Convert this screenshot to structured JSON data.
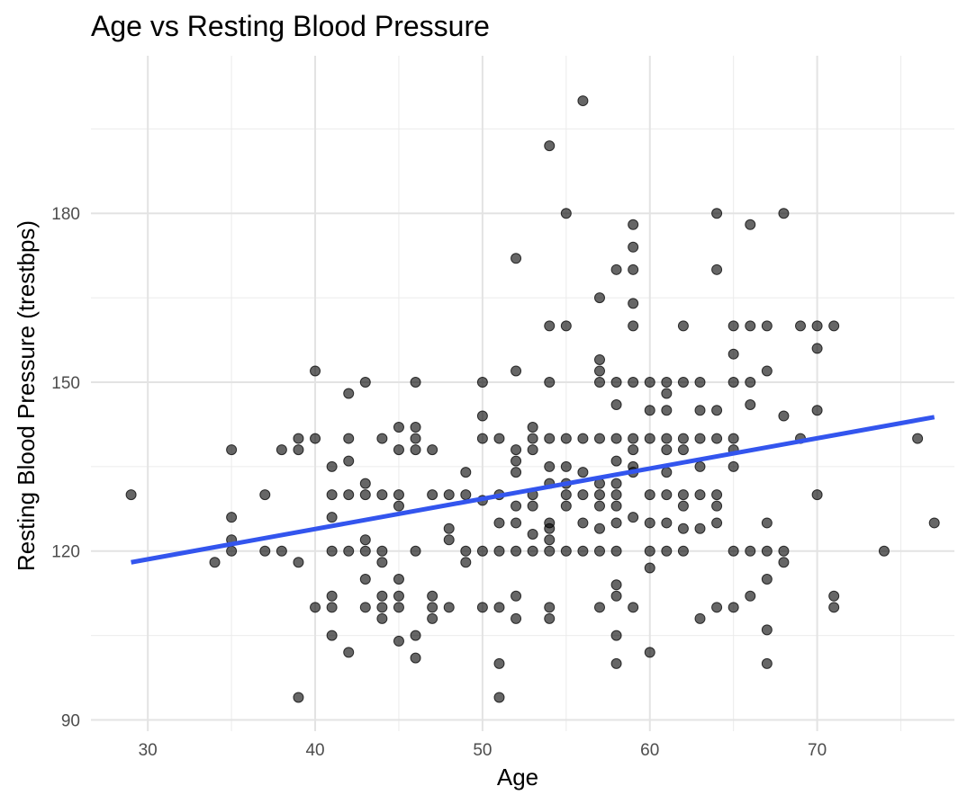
{
  "chart_data": {
    "type": "scatter",
    "title": "Age vs Resting Blood Pressure",
    "xlabel": "Age",
    "ylabel": "Resting Blood Pressure (trestbps)",
    "xlim": [
      26.6,
      78.2
    ],
    "ylim": [
      88,
      208
    ],
    "xticks": [
      30,
      40,
      50,
      60,
      70
    ],
    "yticks": [
      90,
      120,
      150,
      180
    ],
    "x_tick_labels": [
      "30",
      "40",
      "50",
      "60",
      "70"
    ],
    "y_tick_labels": [
      "90",
      "120",
      "150",
      "180"
    ],
    "grid": true,
    "legend": "none",
    "point_color": "#000000",
    "point_opacity": 0.6,
    "trend_line": {
      "type": "linear",
      "color": "#3355ee",
      "x": [
        29,
        77
      ],
      "y": [
        118,
        143.8
      ]
    },
    "points": [
      [
        29,
        130
      ],
      [
        34,
        118
      ],
      [
        35,
        138
      ],
      [
        35,
        126
      ],
      [
        35,
        122
      ],
      [
        35,
        120
      ],
      [
        37,
        130
      ],
      [
        37,
        120
      ],
      [
        38,
        138
      ],
      [
        38,
        120
      ],
      [
        39,
        140
      ],
      [
        39,
        138
      ],
      [
        39,
        118
      ],
      [
        39,
        94
      ],
      [
        40,
        152
      ],
      [
        40,
        140
      ],
      [
        40,
        110
      ],
      [
        41,
        135
      ],
      [
        41,
        130
      ],
      [
        41,
        126
      ],
      [
        41,
        120
      ],
      [
        41,
        112
      ],
      [
        41,
        110
      ],
      [
        41,
        105
      ],
      [
        42,
        148
      ],
      [
        42,
        140
      ],
      [
        42,
        136
      ],
      [
        42,
        130
      ],
      [
        42,
        120
      ],
      [
        42,
        102
      ],
      [
        43,
        150
      ],
      [
        43,
        132
      ],
      [
        43,
        130
      ],
      [
        43,
        122
      ],
      [
        43,
        120
      ],
      [
        43,
        115
      ],
      [
        43,
        110
      ],
      [
        44,
        140
      ],
      [
        44,
        130
      ],
      [
        44,
        120
      ],
      [
        44,
        118
      ],
      [
        44,
        112
      ],
      [
        44,
        110
      ],
      [
        44,
        108
      ],
      [
        45,
        142
      ],
      [
        45,
        138
      ],
      [
        45,
        130
      ],
      [
        45,
        128
      ],
      [
        45,
        115
      ],
      [
        45,
        112
      ],
      [
        45,
        110
      ],
      [
        45,
        104
      ],
      [
        46,
        150
      ],
      [
        46,
        142
      ],
      [
        46,
        140
      ],
      [
        46,
        138
      ],
      [
        46,
        120
      ],
      [
        46,
        105
      ],
      [
        46,
        101
      ],
      [
        47,
        138
      ],
      [
        47,
        130
      ],
      [
        47,
        112
      ],
      [
        47,
        110
      ],
      [
        47,
        108
      ],
      [
        48,
        130
      ],
      [
        48,
        124
      ],
      [
        48,
        122
      ],
      [
        48,
        110
      ],
      [
        49,
        134
      ],
      [
        49,
        130
      ],
      [
        49,
        120
      ],
      [
        49,
        118
      ],
      [
        50,
        150
      ],
      [
        50,
        144
      ],
      [
        50,
        140
      ],
      [
        50,
        129
      ],
      [
        50,
        120
      ],
      [
        50,
        110
      ],
      [
        51,
        140
      ],
      [
        51,
        130
      ],
      [
        51,
        125
      ],
      [
        51,
        120
      ],
      [
        51,
        110
      ],
      [
        51,
        100
      ],
      [
        51,
        94
      ],
      [
        52,
        172
      ],
      [
        52,
        152
      ],
      [
        52,
        138
      ],
      [
        52,
        136
      ],
      [
        52,
        134
      ],
      [
        52,
        128
      ],
      [
        52,
        125
      ],
      [
        52,
        120
      ],
      [
        52,
        112
      ],
      [
        52,
        108
      ],
      [
        53,
        142
      ],
      [
        53,
        140
      ],
      [
        53,
        138
      ],
      [
        53,
        130
      ],
      [
        53,
        128
      ],
      [
        53,
        123
      ],
      [
        53,
        120
      ],
      [
        54,
        192
      ],
      [
        54,
        160
      ],
      [
        54,
        150
      ],
      [
        54,
        140
      ],
      [
        54,
        135
      ],
      [
        54,
        132
      ],
      [
        54,
        125
      ],
      [
        54,
        124
      ],
      [
        54,
        122
      ],
      [
        54,
        120
      ],
      [
        54,
        110
      ],
      [
        54,
        108
      ],
      [
        55,
        180
      ],
      [
        55,
        160
      ],
      [
        55,
        140
      ],
      [
        55,
        135
      ],
      [
        55,
        132
      ],
      [
        55,
        130
      ],
      [
        55,
        128
      ],
      [
        55,
        120
      ],
      [
        56,
        200
      ],
      [
        56,
        140
      ],
      [
        56,
        134
      ],
      [
        56,
        130
      ],
      [
        56,
        125
      ],
      [
        56,
        120
      ],
      [
        57,
        165
      ],
      [
        57,
        154
      ],
      [
        57,
        152
      ],
      [
        57,
        150
      ],
      [
        57,
        140
      ],
      [
        57,
        132
      ],
      [
        57,
        130
      ],
      [
        57,
        128
      ],
      [
        57,
        124
      ],
      [
        57,
        120
      ],
      [
        57,
        110
      ],
      [
        58,
        170
      ],
      [
        58,
        150
      ],
      [
        58,
        146
      ],
      [
        58,
        140
      ],
      [
        58,
        136
      ],
      [
        58,
        132
      ],
      [
        58,
        130
      ],
      [
        58,
        128
      ],
      [
        58,
        125
      ],
      [
        58,
        120
      ],
      [
        58,
        114
      ],
      [
        58,
        112
      ],
      [
        58,
        105
      ],
      [
        58,
        100
      ],
      [
        59,
        178
      ],
      [
        59,
        174
      ],
      [
        59,
        170
      ],
      [
        59,
        164
      ],
      [
        59,
        160
      ],
      [
        59,
        150
      ],
      [
        59,
        140
      ],
      [
        59,
        138
      ],
      [
        59,
        135
      ],
      [
        59,
        134
      ],
      [
        59,
        126
      ],
      [
        59,
        110
      ],
      [
        60,
        150
      ],
      [
        60,
        145
      ],
      [
        60,
        140
      ],
      [
        60,
        130
      ],
      [
        60,
        125
      ],
      [
        60,
        120
      ],
      [
        60,
        117
      ],
      [
        60,
        102
      ],
      [
        61,
        150
      ],
      [
        61,
        148
      ],
      [
        61,
        145
      ],
      [
        61,
        140
      ],
      [
        61,
        138
      ],
      [
        61,
        134
      ],
      [
        61,
        130
      ],
      [
        61,
        125
      ],
      [
        61,
        120
      ],
      [
        62,
        160
      ],
      [
        62,
        150
      ],
      [
        62,
        140
      ],
      [
        62,
        138
      ],
      [
        62,
        130
      ],
      [
        62,
        128
      ],
      [
        62,
        124
      ],
      [
        62,
        120
      ],
      [
        63,
        150
      ],
      [
        63,
        145
      ],
      [
        63,
        140
      ],
      [
        63,
        135
      ],
      [
        63,
        130
      ],
      [
        63,
        124
      ],
      [
        63,
        108
      ],
      [
        64,
        180
      ],
      [
        64,
        170
      ],
      [
        64,
        145
      ],
      [
        64,
        140
      ],
      [
        64,
        130
      ],
      [
        64,
        128
      ],
      [
        64,
        125
      ],
      [
        64,
        110
      ],
      [
        65,
        160
      ],
      [
        65,
        155
      ],
      [
        65,
        150
      ],
      [
        65,
        140
      ],
      [
        65,
        138
      ],
      [
        65,
        135
      ],
      [
        65,
        120
      ],
      [
        65,
        110
      ],
      [
        66,
        178
      ],
      [
        66,
        160
      ],
      [
        66,
        150
      ],
      [
        66,
        146
      ],
      [
        66,
        120
      ],
      [
        66,
        112
      ],
      [
        67,
        160
      ],
      [
        67,
        152
      ],
      [
        67,
        125
      ],
      [
        67,
        120
      ],
      [
        67,
        115
      ],
      [
        67,
        106
      ],
      [
        67,
        100
      ],
      [
        68,
        180
      ],
      [
        68,
        144
      ],
      [
        68,
        120
      ],
      [
        68,
        118
      ],
      [
        69,
        160
      ],
      [
        69,
        140
      ],
      [
        70,
        160
      ],
      [
        70,
        156
      ],
      [
        70,
        145
      ],
      [
        70,
        130
      ],
      [
        71,
        160
      ],
      [
        71,
        112
      ],
      [
        71,
        110
      ],
      [
        74,
        120
      ],
      [
        76,
        140
      ],
      [
        77,
        125
      ]
    ]
  }
}
